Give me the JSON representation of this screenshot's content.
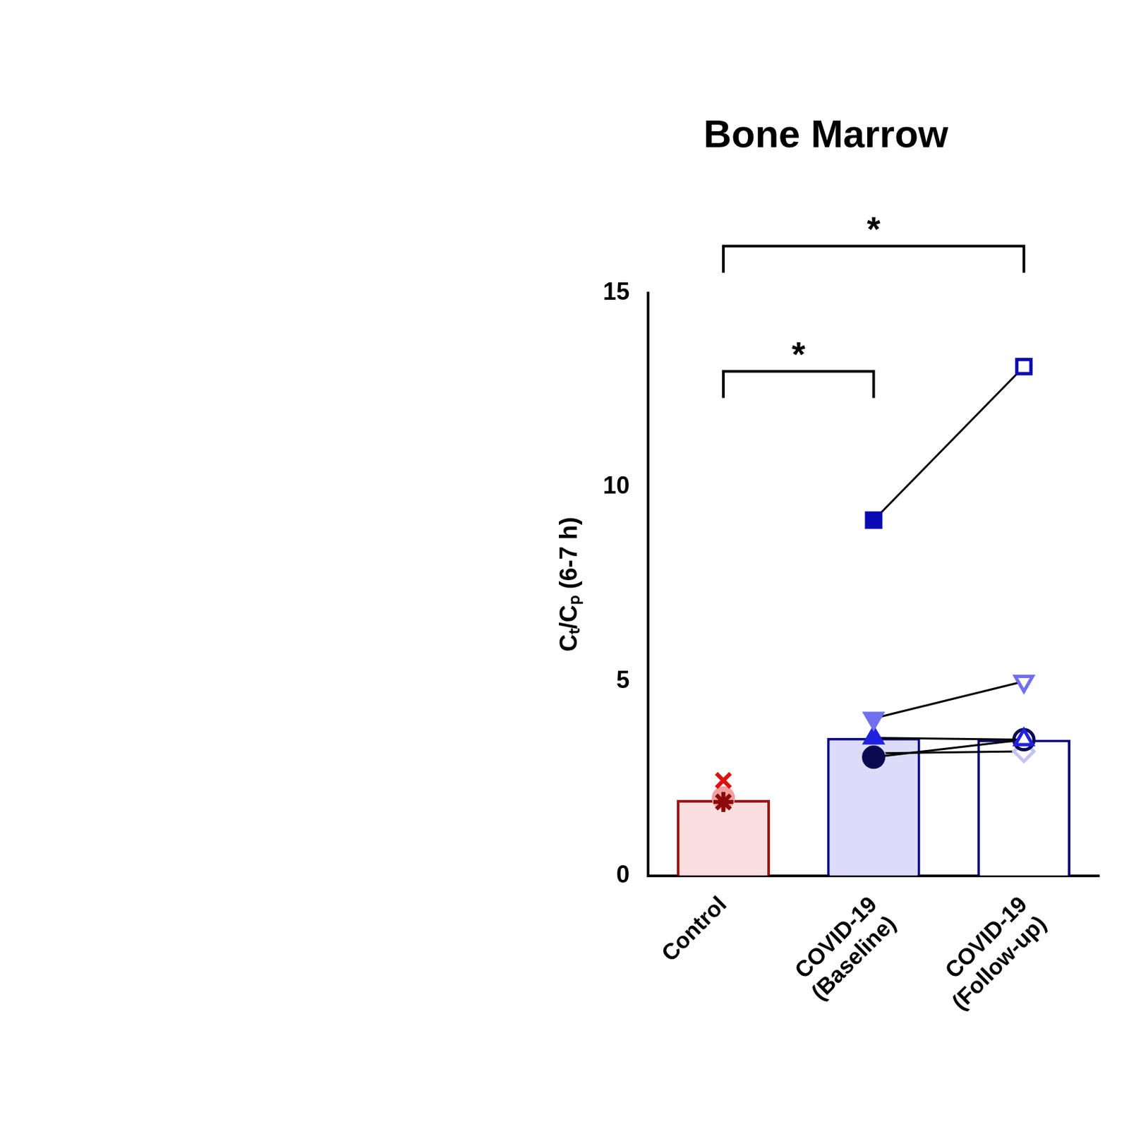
{
  "chart_data": {
    "type": "bar",
    "title": "Bone Marrow",
    "y_label": "Cₜ/Cₚ (6-7 h)",
    "categories": [
      "Control",
      "COVID-19 (Baseline)",
      "COVID-19 (Follow-up)"
    ],
    "values": [
      1.95,
      3.55,
      3.5
    ],
    "colors": [
      "#fbdede",
      "#dcdcfa",
      "#ffffff"
    ],
    "ylim": [
      0,
      15
    ],
    "yticks": [
      0,
      5,
      10,
      15
    ],
    "grid": false,
    "points": [
      {
        "color": "#8b0a0a",
        "marker": "star",
        "values": [
          1.9,
          null,
          null
        ]
      },
      {
        "color": "#dd1111",
        "marker": "cross",
        "values": [
          2.45,
          null,
          null
        ]
      },
      {
        "color": "#f4a0a0",
        "marker": "circle",
        "values": [
          2.0,
          null,
          null
        ]
      },
      {
        "color": "#0a0ab4",
        "marker": "square",
        "values": [
          null,
          9.15,
          13.1
        ]
      },
      {
        "color": "#7070ee",
        "marker": "triangle_down",
        "values": [
          null,
          4.05,
          5.0
        ]
      },
      {
        "color": "#2020e0",
        "marker": "triangle",
        "values": [
          null,
          3.55,
          3.5
        ]
      },
      {
        "color": "#0a0a50",
        "marker": "circle",
        "values": [
          null,
          3.05,
          3.5
        ]
      },
      {
        "color": "#c4c4f4",
        "marker": "diamond",
        "values": [
          null,
          3.15,
          3.2
        ]
      }
    ],
    "comparisons": [
      {
        "from": "Control",
        "to": "COVID-19 (Baseline)",
        "label": "*"
      },
      {
        "from": "Control",
        "to": "COVID-19 (Follow-up)",
        "label": "*"
      }
    ]
  }
}
